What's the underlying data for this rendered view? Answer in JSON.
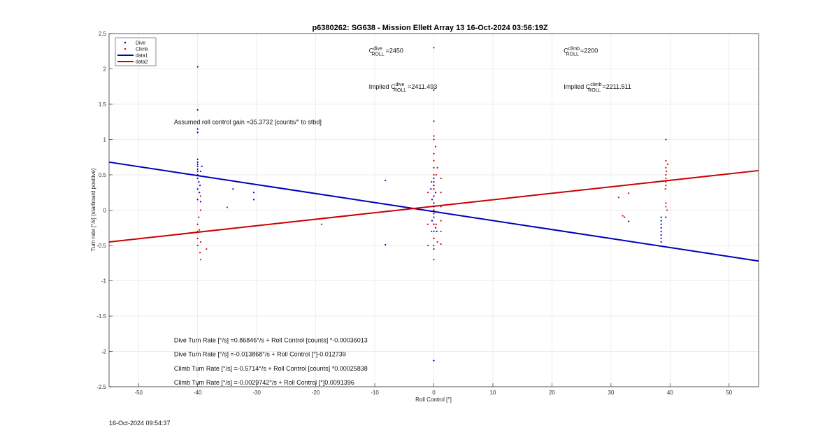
{
  "timestamp": "16-Oct-2024 09:54:37",
  "chart_data": {
    "type": "scatter",
    "title": "p6380262: SG638 - Mission Ellett Array 13 16-Oct-2024 03:56:19Z",
    "xlabel": "Roll Control [°]",
    "ylabel": "Turn rate [°/s] (starboard positive)",
    "xlim": [
      -55,
      55
    ],
    "ylim": [
      -2.5,
      2.5
    ],
    "xticks": [
      -50,
      -40,
      -30,
      -20,
      -10,
      0,
      10,
      20,
      30,
      40,
      50
    ],
    "yticks": [
      -2.5,
      -2,
      -1.5,
      -1,
      -0.5,
      0,
      0.5,
      1,
      1.5,
      2,
      2.5
    ],
    "grid": true,
    "legend": {
      "placement": "top-left",
      "entries": [
        "Dive",
        "Climb",
        "data1",
        "data2"
      ]
    },
    "series": [
      {
        "name": "Dive",
        "kind": "points",
        "color": "#0000cc",
        "points": [
          [
            -40,
            2.03
          ],
          [
            -40,
            1.42
          ],
          [
            -40,
            1.15
          ],
          [
            -40,
            1.1
          ],
          [
            -40,
            0.72
          ],
          [
            -40,
            0.68
          ],
          [
            -40,
            0.65
          ],
          [
            -40,
            0.62
          ],
          [
            -40,
            0.58
          ],
          [
            -40,
            0.55
          ],
          [
            -40,
            0.5
          ],
          [
            -40,
            0.45
          ],
          [
            -39.8,
            0.4
          ],
          [
            -39.6,
            0.35
          ],
          [
            -40,
            0.3
          ],
          [
            -39.7,
            0.25
          ],
          [
            -40,
            0.15
          ],
          [
            -39.5,
            0.12
          ],
          [
            -39.5,
            0.55
          ],
          [
            -39.3,
            0.62
          ],
          [
            -34,
            0.3
          ],
          [
            -30.5,
            0.25
          ],
          [
            -30.5,
            0.15
          ],
          [
            -8.2,
            0.42
          ],
          [
            -8.2,
            -0.49
          ],
          [
            0,
            1.7
          ],
          [
            0,
            0.45
          ],
          [
            0,
            0.4
          ],
          [
            0,
            0.35
          ],
          [
            0,
            0.3
          ],
          [
            0,
            0.2
          ],
          [
            0,
            0.1
          ],
          [
            0,
            0.05
          ],
          [
            0,
            0
          ],
          [
            0,
            -0.05
          ],
          [
            0,
            -0.1
          ],
          [
            0,
            -0.2
          ],
          [
            0,
            -0.3
          ],
          [
            0,
            -0.4
          ],
          [
            -0.3,
            0.15
          ],
          [
            -0.3,
            -0.15
          ],
          [
            0.3,
            0.25
          ],
          [
            0.3,
            -0.25
          ],
          [
            -0.5,
            0.3
          ],
          [
            0.5,
            -0.3
          ],
          [
            0,
            -0.55
          ],
          [
            0,
            -2.13
          ],
          [
            33,
            -0.16
          ],
          [
            38.5,
            -0.1
          ],
          [
            38.5,
            -0.15
          ],
          [
            38.5,
            -0.2
          ],
          [
            38.5,
            -0.25
          ],
          [
            38.5,
            -0.3
          ],
          [
            38.5,
            -0.35
          ],
          [
            38.5,
            -0.4
          ],
          [
            38.5,
            -0.45
          ],
          [
            39.3,
            -0.1
          ]
        ]
      },
      {
        "name": "Climb",
        "kind": "points",
        "color": "#dd0000",
        "points": [
          [
            -40,
            -0.2
          ],
          [
            -40,
            -0.3
          ],
          [
            -40,
            -0.4
          ],
          [
            -40,
            -0.5
          ],
          [
            -39.7,
            -0.28
          ],
          [
            -39.6,
            -0.6
          ],
          [
            -39.5,
            -0.7
          ],
          [
            -39.5,
            -0.45
          ],
          [
            -39.5,
            0.2
          ],
          [
            -39.5,
            0.0
          ],
          [
            -39.8,
            -0.1
          ],
          [
            -38.5,
            -0.55
          ],
          [
            -35,
            0.04
          ],
          [
            -19,
            -0.2
          ],
          [
            0,
            2.3
          ],
          [
            0,
            1.26
          ],
          [
            0,
            1.05
          ],
          [
            0,
            1.0
          ],
          [
            0,
            0.8
          ],
          [
            0,
            0.7
          ],
          [
            0,
            0.6
          ],
          [
            0,
            0.5
          ],
          [
            0,
            0.4
          ],
          [
            0,
            0.3
          ],
          [
            0,
            0.2
          ],
          [
            0,
            0.1
          ],
          [
            0,
            0.0
          ],
          [
            0,
            -0.1
          ],
          [
            0,
            -0.2
          ],
          [
            0,
            -0.3
          ],
          [
            0,
            -0.4
          ],
          [
            0,
            -0.5
          ],
          [
            0,
            -0.7
          ],
          [
            0.3,
            0.9
          ],
          [
            0.4,
            0.5
          ],
          [
            0.4,
            -0.2
          ],
          [
            -0.4,
            0.4
          ],
          [
            -0.4,
            -0.3
          ],
          [
            -1,
            0.25
          ],
          [
            -1,
            -0.5
          ],
          [
            -1,
            -0.2
          ],
          [
            1.2,
            0.45
          ],
          [
            1.2,
            0.25
          ],
          [
            1.2,
            0.05
          ],
          [
            1.2,
            -0.15
          ],
          [
            1.2,
            -0.3
          ],
          [
            1.2,
            -0.48
          ],
          [
            0.6,
            0.6
          ],
          [
            0.6,
            -0.45
          ],
          [
            31.3,
            0.18
          ],
          [
            32,
            -0.08
          ],
          [
            32.3,
            -0.1
          ],
          [
            33,
            0.24
          ],
          [
            39.3,
            1.0
          ],
          [
            39.3,
            0.7
          ],
          [
            39.3,
            0.6
          ],
          [
            39.4,
            0.55
          ],
          [
            39.3,
            0.5
          ],
          [
            39.3,
            0.45
          ],
          [
            39.3,
            0.4
          ],
          [
            39.3,
            0.35
          ],
          [
            39.2,
            0.3
          ],
          [
            39.3,
            0.1
          ],
          [
            39.3,
            0.05
          ],
          [
            39.6,
            0.65
          ],
          [
            39.5,
            0.0
          ]
        ]
      },
      {
        "name": "data1",
        "kind": "line",
        "color": "#0000bb",
        "x": [
          -55,
          55
        ],
        "y": [
          0.68,
          -0.72
        ]
      },
      {
        "name": "data2",
        "kind": "line",
        "color": "#cc0000",
        "x": [
          -55,
          55
        ],
        "y": [
          -0.45,
          0.56
        ]
      }
    ],
    "annotations": [
      {
        "id": "c-roll-dive",
        "prefix": "C",
        "sup": "dive",
        "sub": "ROLL",
        "text": "=2450",
        "x": -11,
        "y": 2.23
      },
      {
        "id": "c-roll-climb",
        "prefix": "C",
        "sup": "climb",
        "sub": "ROLL",
        "text": "=2200",
        "x": 22,
        "y": 2.23
      },
      {
        "id": "implied-dive",
        "prefix": "Implied C",
        "sup": "dive",
        "sub": "ROLL",
        "text": "=2411.493",
        "x": -11,
        "y": 1.72
      },
      {
        "id": "implied-climb",
        "prefix": "Implied C",
        "sup": "climb",
        "sub": "ROLL",
        "text": "=2211.511",
        "x": 22,
        "y": 1.72
      },
      {
        "id": "gain",
        "text": "Assumed roll control gain =35.3732 [counts/° to stbd]",
        "x": -44,
        "y": 1.22
      },
      {
        "id": "fit1",
        "text": "Dive Turn Rate [°/s] =0.86846°/s + Roll Control [counts] *-0.00036013",
        "x": -44,
        "y": -1.87
      },
      {
        "id": "fit2",
        "text": "Dive Turn Rate [°/s] =-0.013868°/s + Roll Control [°]-0.012739",
        "x": -44,
        "y": -2.07
      },
      {
        "id": "fit3",
        "text": "Climb Turn Rate [°/s] =-0.5714°/s + Roll Control [counts] *0.00025838",
        "x": -44,
        "y": -2.27
      },
      {
        "id": "fit4",
        "text": "Climb Turn Rate [°/s] =-0.0029742°/s + Roll Control [°]0.0091396",
        "x": -44,
        "y": -2.47
      }
    ]
  }
}
